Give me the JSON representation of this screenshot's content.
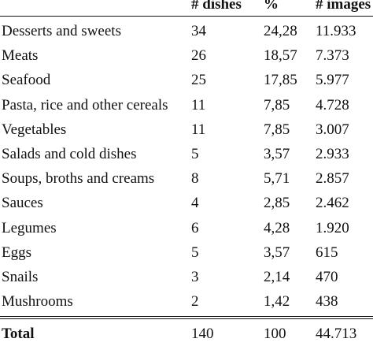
{
  "table": {
    "headers": [
      "",
      "# dishes",
      "%",
      "# images"
    ],
    "rows": [
      [
        "Desserts and sweets",
        "34",
        "24,28",
        "11.933"
      ],
      [
        "Meats",
        "26",
        "18,57",
        "7.373"
      ],
      [
        "Seafood",
        "25",
        "17,85",
        "5.977"
      ],
      [
        "Pasta, rice and other cereals",
        "11",
        "7,85",
        "4.728"
      ],
      [
        "Vegetables",
        "11",
        "7,85",
        "3.007"
      ],
      [
        "Salads and cold dishes",
        "5",
        "3,57",
        "2.933"
      ],
      [
        "Soups, broths and creams",
        "8",
        "5,71",
        "2.857"
      ],
      [
        "Sauces",
        "4",
        "2,85",
        "2.462"
      ],
      [
        "Legumes",
        "6",
        "4,28",
        "1.920"
      ],
      [
        "Eggs",
        "5",
        "3,57",
        "615"
      ],
      [
        "Snails",
        "3",
        "2,14",
        "470"
      ],
      [
        "Mushrooms",
        "2",
        "1,42",
        "438"
      ]
    ],
    "total": [
      "Total",
      "140",
      "100",
      "44.713"
    ]
  }
}
